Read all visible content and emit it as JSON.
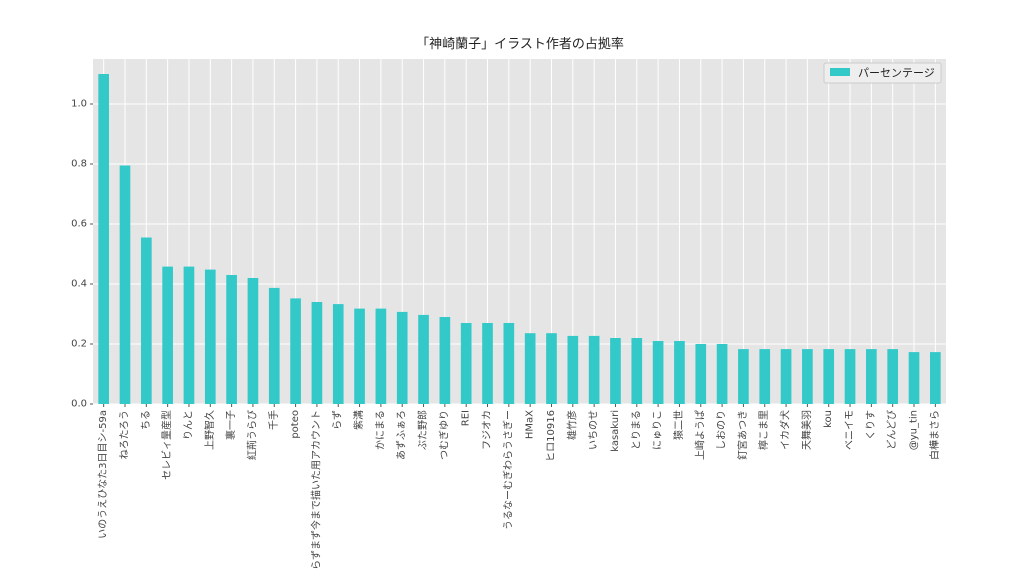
{
  "chart_data": {
    "type": "bar",
    "title": "「神崎蘭子」イラスト作者の占拠率",
    "xlabel": "",
    "ylabel": "",
    "ylim": [
      0,
      1.15
    ],
    "yticks": [
      0.0,
      0.2,
      0.4,
      0.6,
      0.8,
      1.0
    ],
    "grid": true,
    "legend_position": "top-right",
    "bar_color": "#33c9c9",
    "background_color": "#e5e5e5",
    "categories": [
      "いのうえひなた3日目シ-59a",
      "ねろたろう",
      "ちる",
      "セレビィ量産型",
      "りんと",
      "上野智久",
      "裏一子",
      "紅荊うらび",
      "千手",
      "poteo",
      "らずまず今まで描いた用アカウント",
      "らず",
      "紫溝",
      "かにまる",
      "あずふぁろ",
      "ぶた野郎",
      "つむぎゆり",
      "REI",
      "フジオカ",
      "うるなーむぎわらうさぎー",
      "HMaX",
      "ヒロ10916",
      "雄竹彦",
      "いちのせ",
      "kasakuri",
      "とりまる",
      "にゅりこ",
      "猿二世",
      "上崎ようぱ",
      "しおのり",
      "釘宮あつき",
      "檸こま里",
      "イカダ犬",
      "天舞美羽",
      "kou",
      "べニイモ",
      "くりす",
      "どんどび",
      "@yu_tin",
      "白樺まさら"
    ],
    "series": [
      {
        "name": "パーセンテージ",
        "values": [
          1.1,
          0.795,
          0.555,
          0.458,
          0.458,
          0.448,
          0.43,
          0.42,
          0.387,
          0.352,
          0.34,
          0.333,
          0.318,
          0.318,
          0.307,
          0.297,
          0.29,
          0.27,
          0.27,
          0.27,
          0.236,
          0.236,
          0.227,
          0.227,
          0.22,
          0.22,
          0.21,
          0.21,
          0.2,
          0.2,
          0.183,
          0.183,
          0.183,
          0.183,
          0.183,
          0.183,
          0.183,
          0.183,
          0.173,
          0.173
        ]
      }
    ]
  }
}
